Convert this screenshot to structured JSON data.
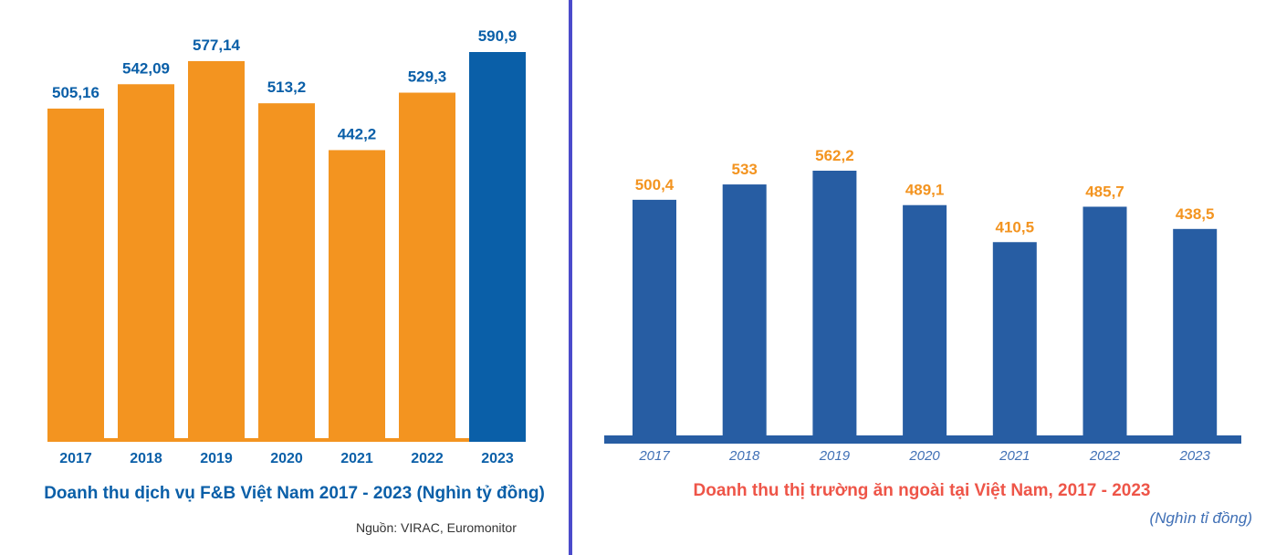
{
  "chart_data": [
    {
      "type": "bar",
      "title": "Doanh thu dịch vụ F&B Việt Nam 2017 - 2023 (Nghìn tỷ đồng)",
      "source": "Nguồn: VIRAC, Euromonitor",
      "categories": [
        "2017",
        "2018",
        "2019",
        "2020",
        "2021",
        "2022",
        "2023"
      ],
      "values": [
        505.16,
        542.09,
        577.14,
        513.2,
        442.2,
        529.3,
        590.9
      ],
      "data_labels": [
        "505,16",
        "542,09",
        "577,14",
        "513,2",
        "442,2",
        "529,3",
        "590,9"
      ],
      "colors": [
        "#F39420",
        "#F39420",
        "#F39420",
        "#F39420",
        "#F39420",
        "#F39420",
        "#0A5FA8"
      ],
      "label_color": "#0A5FA8",
      "ylim": [
        0,
        590.9
      ],
      "grid": false
    },
    {
      "type": "bar",
      "title": "Doanh thu thị trường ăn ngoài tại Việt Nam, 2017 - 2023",
      "unit": "(Nghìn tỉ đồng)",
      "categories": [
        "2017",
        "2018",
        "2019",
        "2020",
        "2021",
        "2022",
        "2023"
      ],
      "values": [
        500.4,
        533,
        562.2,
        489.1,
        410.5,
        485.7,
        438.5
      ],
      "data_labels": [
        "500,4",
        "533",
        "562,2",
        "489,1",
        "410,5",
        "485,7",
        "438,5"
      ],
      "bar_color": "#275DA3",
      "label_color": "#F39420",
      "tick_color": "#3F6FB5",
      "ylim": [
        0,
        562.2
      ],
      "grid": false
    }
  ]
}
